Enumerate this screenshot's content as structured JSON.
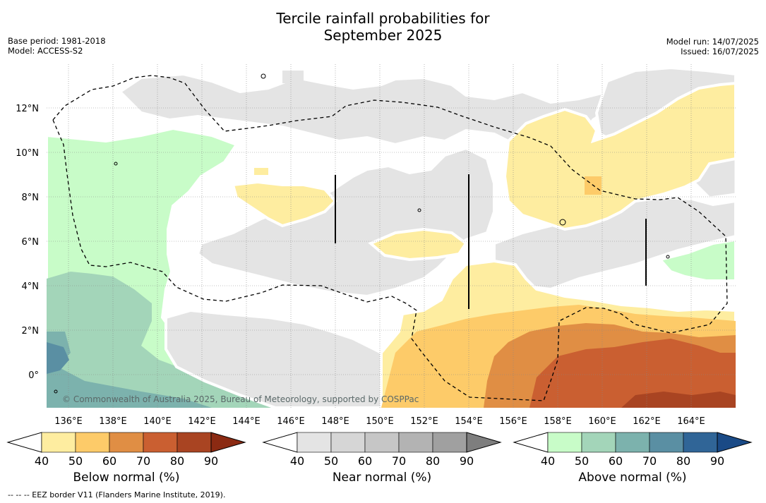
{
  "title_line1": "Tercile rainfall probabilities for",
  "title_line2": "September 2025",
  "base_period": "Base period: 1981-2018",
  "model": "Model: ACCESS-S2",
  "model_run": "Model run: 14/07/2025",
  "issued": "Issued: 16/07/2025",
  "copyright": "© Commonwealth of Australia 2025, Bureau of Meteorology, supported by COSPPac",
  "footnote": "--  --  -- EEZ border V11 (Flanders Marine Institute, 2019).",
  "map": {
    "lat_labels": [
      "12°N",
      "10°N",
      "8°N",
      "6°N",
      "4°N",
      "2°N",
      "0°"
    ],
    "lon_labels": [
      "136°E",
      "138°E",
      "140°E",
      "142°E",
      "144°E",
      "146°E",
      "148°E",
      "150°E",
      "152°E",
      "154°E",
      "156°E",
      "158°E",
      "160°E",
      "162°E",
      "164°E"
    ]
  },
  "colorbars": [
    {
      "id": "below",
      "label": "Below normal (%)",
      "ticks": [
        "40",
        "50",
        "60",
        "70",
        "80",
        "90"
      ],
      "colors": [
        "#ffffff",
        "#feeda0",
        "#fdcb69",
        "#e08e44",
        "#ca5f31",
        "#a94422",
        "#8b2a12"
      ]
    },
    {
      "id": "near",
      "label": "Near normal (%)",
      "ticks": [
        "40",
        "50",
        "60",
        "70",
        "80",
        "90"
      ],
      "colors": [
        "#ffffff",
        "#e4e4e4",
        "#d6d6d6",
        "#c6c6c6",
        "#b3b3b3",
        "#a0a0a0",
        "#7e7e7e"
      ]
    },
    {
      "id": "above",
      "label": "Above normal (%)",
      "ticks": [
        "40",
        "50",
        "60",
        "70",
        "80",
        "90"
      ],
      "colors": [
        "#ffffff",
        "#c8fcc8",
        "#a3d5b9",
        "#7cb2ad",
        "#5a8fa3",
        "#306597",
        "#1a4a86"
      ]
    }
  ]
}
